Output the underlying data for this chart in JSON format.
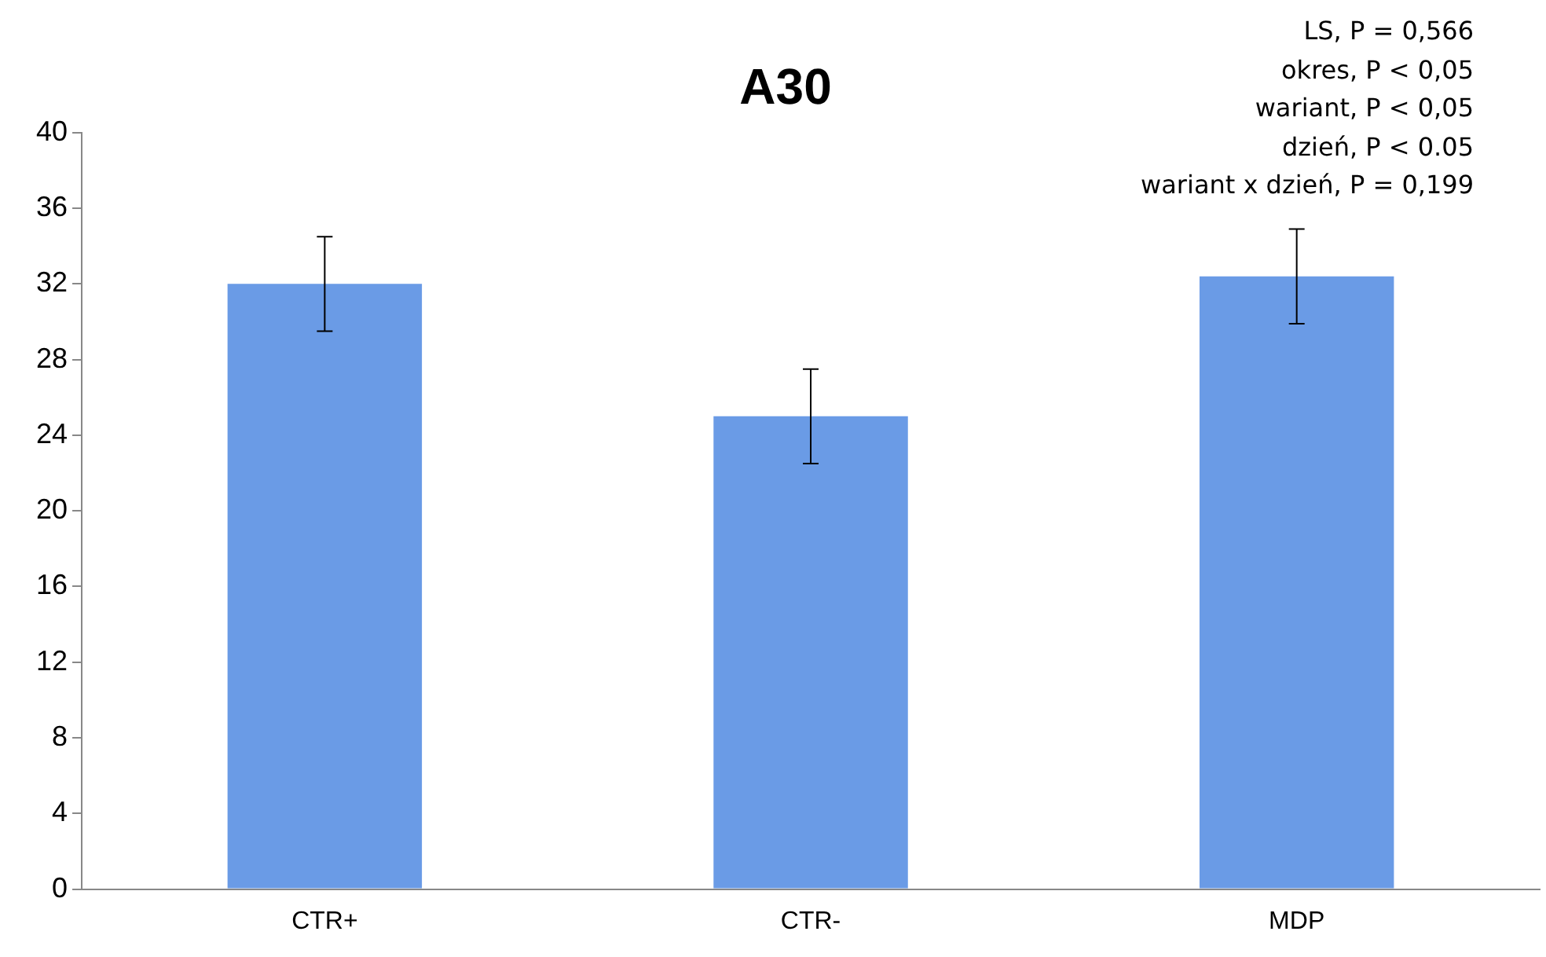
{
  "chart_data": {
    "type": "bar",
    "title": "A30",
    "categories": [
      "CTR+",
      "CTR-",
      "MDP"
    ],
    "values": [
      32.0,
      25.0,
      32.4
    ],
    "color": "#6a9be6",
    "errors": [
      2.5,
      2.5,
      2.5
    ],
    "ylim": [
      0,
      40
    ],
    "yticks": [
      0,
      4,
      8,
      12,
      16,
      20,
      24,
      28,
      32,
      36,
      40
    ],
    "grid": false,
    "legend": false,
    "annotations": [
      "LS, P = 0,566",
      "okres, P < 0,05",
      "wariant, P < 0,05",
      "dzień, P < 0.05",
      "wariant x dzień, P = 0,199"
    ]
  }
}
